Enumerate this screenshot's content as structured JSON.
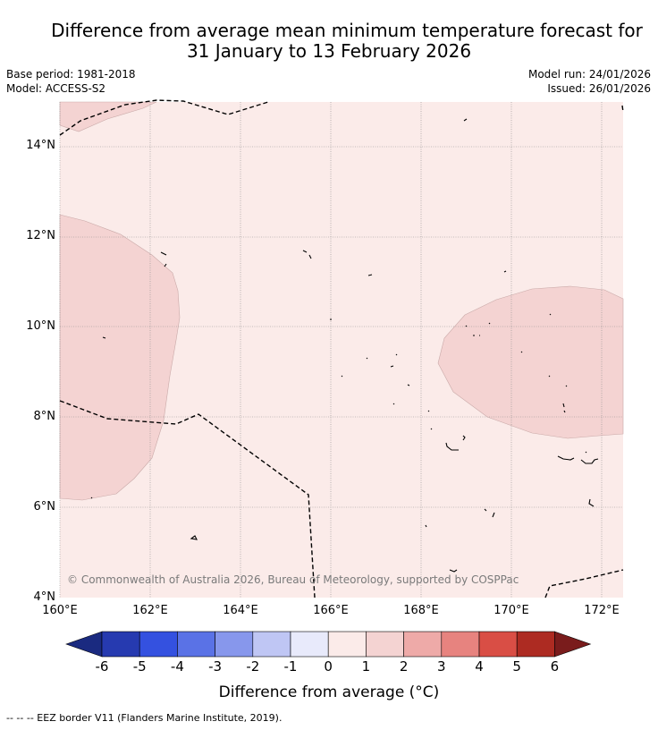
{
  "title_line1": "Difference from average mean minimum temperature forecast for",
  "title_line2": "31 January to 13 February 2026",
  "meta": {
    "base_period": "Base period: 1981-2018",
    "model": "Model: ACCESS-S2",
    "model_run": "Model run: 24/01/2026",
    "issued": "Issued: 26/01/2026"
  },
  "map": {
    "background_color": "#fbebe9",
    "lat_labels": [
      "14°N",
      "12°N",
      "10°N",
      "8°N",
      "6°N",
      "4°N"
    ],
    "lon_labels": [
      "160°E",
      "162°E",
      "164°E",
      "166°E",
      "168°E",
      "170°E",
      "172°E"
    ],
    "copyright": "© Commonwealth of Australia 2026, Bureau of Meteorology, supported by COSPPac"
  },
  "colorbar": {
    "title": "Difference from average (°C)",
    "ticks": [
      "-6",
      "-5",
      "-4",
      "-3",
      "-2",
      "-1",
      "0",
      "1",
      "2",
      "3",
      "4",
      "5",
      "6"
    ],
    "colors": [
      "#1a2a80",
      "#263ab0",
      "#3451e0",
      "#5a72e6",
      "#8797ec",
      "#bfc6f4",
      "#e8eafb",
      "#fbebe9",
      "#f4d3d2",
      "#eeaaa8",
      "#e7837f",
      "#d94e45",
      "#ad2b22",
      "#7a1c1c"
    ]
  },
  "footer": "--  --  -- EEZ border V11 (Flanders Marine Institute, 2019)."
}
